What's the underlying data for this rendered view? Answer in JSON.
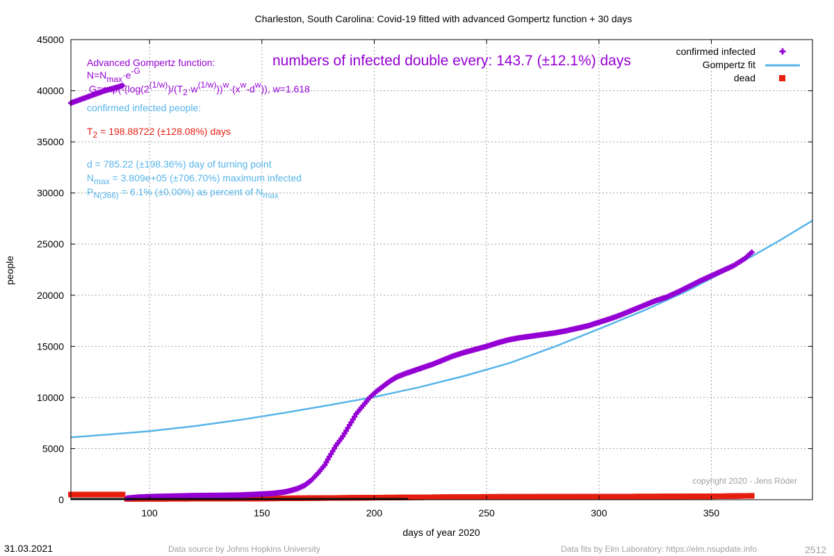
{
  "chart_data": {
    "type": "scatter",
    "title": "Charleston,  South Carolina: Covid-19 fitted with advanced Gompertz function + 30 days",
    "xlabel": "days of year 2020",
    "ylabel": "people",
    "xlim": [
      65,
      395
    ],
    "ylim": [
      0,
      45000
    ],
    "x_ticks": [
      100,
      150,
      200,
      250,
      300,
      350
    ],
    "y_ticks": [
      0,
      5000,
      10000,
      15000,
      20000,
      25000,
      30000,
      35000,
      40000,
      45000
    ],
    "grid": true,
    "legend_position": "top-right",
    "series": [
      {
        "name": "confirmed infected",
        "style": "points-plus",
        "color": "#9400d3",
        "x": [
          65,
          70,
          75,
          80,
          85,
          88,
          90,
          95,
          100,
          110,
          120,
          130,
          140,
          150,
          155,
          160,
          163,
          166,
          169,
          172,
          175,
          178,
          180,
          183,
          186,
          189,
          192,
          195,
          198,
          201,
          204,
          207,
          210,
          214,
          218,
          222,
          226,
          230,
          235,
          240,
          245,
          250,
          255,
          260,
          265,
          270,
          275,
          280,
          285,
          290,
          295,
          300,
          305,
          310,
          315,
          320,
          325,
          330,
          335,
          340,
          345,
          350,
          355,
          360,
          365,
          368
        ],
        "y": [
          38800,
          39200,
          39600,
          40000,
          40300,
          40500,
          150,
          250,
          300,
          350,
          400,
          420,
          450,
          550,
          620,
          750,
          900,
          1100,
          1400,
          1900,
          2600,
          3400,
          4200,
          5300,
          6200,
          7300,
          8400,
          9200,
          10000,
          10600,
          11100,
          11600,
          12000,
          12350,
          12650,
          12950,
          13250,
          13600,
          14050,
          14400,
          14700,
          15000,
          15350,
          15650,
          15850,
          16000,
          16150,
          16300,
          16500,
          16750,
          17000,
          17350,
          17700,
          18100,
          18550,
          19000,
          19450,
          19800,
          20300,
          20850,
          21400,
          21900,
          22400,
          22900,
          23600,
          24200
        ]
      },
      {
        "name": "Gompertz fit",
        "style": "line",
        "color": "#56b4e9",
        "x": [
          65,
          80,
          100,
          120,
          140,
          160,
          180,
          200,
          220,
          240,
          260,
          280,
          300,
          320,
          340,
          360,
          380,
          395
        ],
        "y": [
          6100,
          6350,
          6700,
          7200,
          7800,
          8500,
          9250,
          10050,
          11000,
          12100,
          13350,
          14950,
          16700,
          18500,
          20500,
          22800,
          25300,
          27300
        ]
      },
      {
        "name": "dead",
        "style": "points-square",
        "color": "#e51e10",
        "x": [
          65,
          88,
          90,
          150,
          200,
          250,
          300,
          350,
          368
        ],
        "y": [
          500,
          500,
          80,
          120,
          200,
          280,
          300,
          330,
          380
        ]
      }
    ],
    "dark_series": {
      "x": [
        65,
        120,
        180,
        215
      ],
      "y": [
        0,
        0,
        0,
        0
      ]
    },
    "annotations": {
      "doubling": "numbers of infected double every: 143.7 (±12.1%) days",
      "func_title": "Advanced Gompertz function:",
      "func_n": "N=N",
      "func_n_sub": "max",
      "func_n_rest": "·e",
      "func_n_sup": "-G",
      "func_g1": "G=exp(-(log(2",
      "func_g1_sup": "(1/w)",
      "func_g2": ")/(T",
      "func_g2_sub": "2",
      "func_g3": "·w",
      "func_g3_sup": "(1/w)",
      "func_g4": "))",
      "func_g4_sup": "w",
      "func_g5": "·(x",
      "func_g5_sup": "w",
      "func_g6": "-d",
      "func_g6_sup": "w",
      "func_g7": ")), w=1.618",
      "conf_header": "confirmed infected people:",
      "t2_a": "T",
      "t2_sub": "2",
      "t2_b": " = 198.88722 (±128.08%) days",
      "d_line": "d = 785.22 (±198.36%) day of turning point",
      "nmax_a": "N",
      "nmax_sub": "max",
      "nmax_b": " = 3.809e+05 (±706.70%) maximum infected",
      "p_a": "P",
      "p_sub": "N(366)",
      "p_b": " = 6.1% (±0.00%) as percent of N",
      "p_sub2": "max",
      "copyright": "copyright 2020 - Jens Röder"
    }
  },
  "footer": {
    "date": "31.03.2021",
    "source": "Data source by Johns Hopkins University",
    "fits": "Data fits by Elm Laboratory: https://elm.nsupdate.info",
    "number": "2512"
  },
  "colors": {
    "infected": "#9400d3",
    "fit": "#56b4e9",
    "dead": "#e51e10",
    "t2": "#e51e10"
  }
}
